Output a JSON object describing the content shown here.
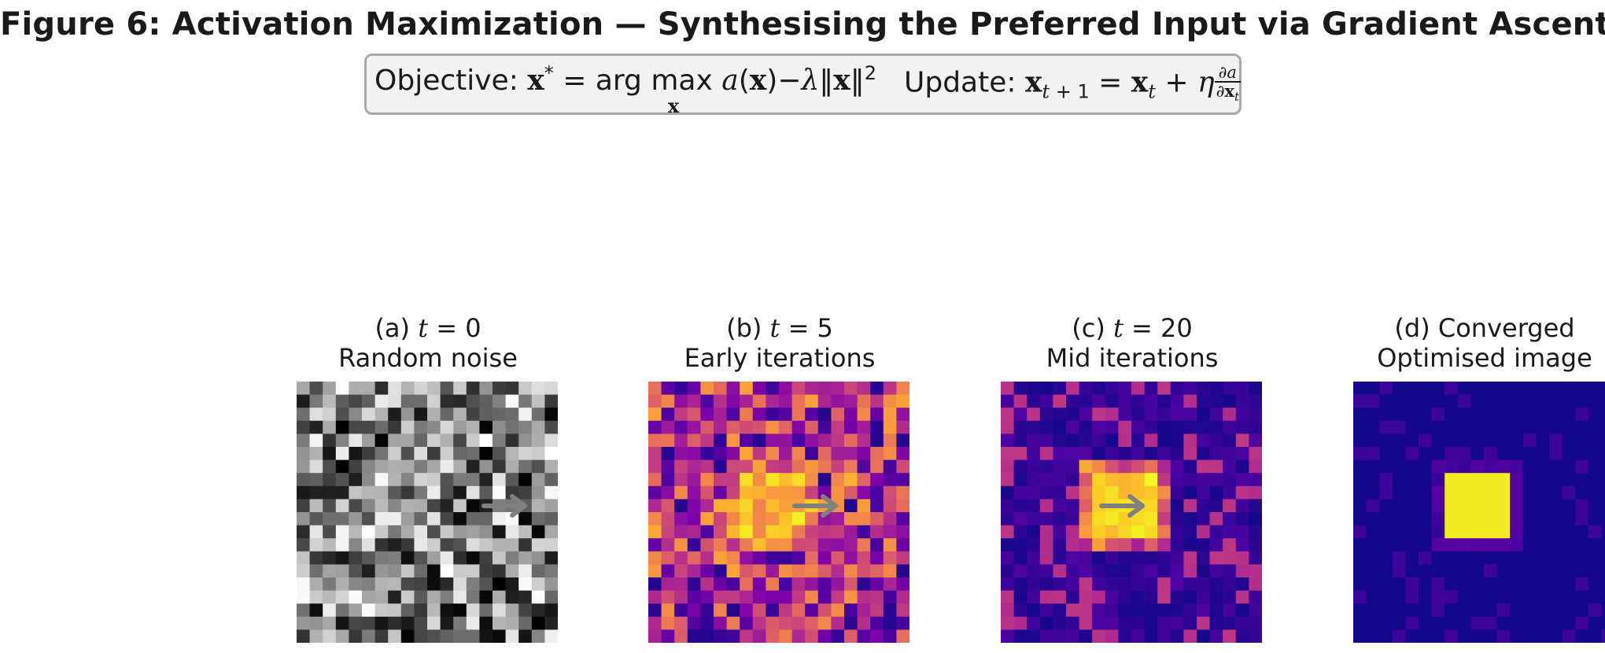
{
  "title": "Figure 6: Activation Maximization — Synthesising the Preferred Input via Gradient Ascent",
  "formula": {
    "objective_label": "Objective:",
    "update_label": "Update:"
  },
  "panels": [
    {
      "label": "(a)",
      "t_var": "t",
      "t_eq": " = 0",
      "caption": "Random noise",
      "colormap": "gray",
      "stage": "noise",
      "arrow": true
    },
    {
      "label": "(b)",
      "t_var": "t",
      "t_eq": " = 5",
      "caption": "Early iterations",
      "colormap": "plasma",
      "stage": "early",
      "arrow": true
    },
    {
      "label": "(c)",
      "t_var": "t",
      "t_eq": " = 20",
      "caption": "Mid iterations",
      "colormap": "plasma",
      "stage": "mid",
      "arrow": true
    },
    {
      "label": "(d) Converged",
      "t_var": "",
      "t_eq": "",
      "caption": "Optimised image",
      "colormap": "plasma",
      "stage": "converged",
      "arrow": false
    }
  ],
  "colors": {
    "arrow": "#808080",
    "box_bg": "#f2f2f2",
    "box_border": "#a8a8a8"
  }
}
